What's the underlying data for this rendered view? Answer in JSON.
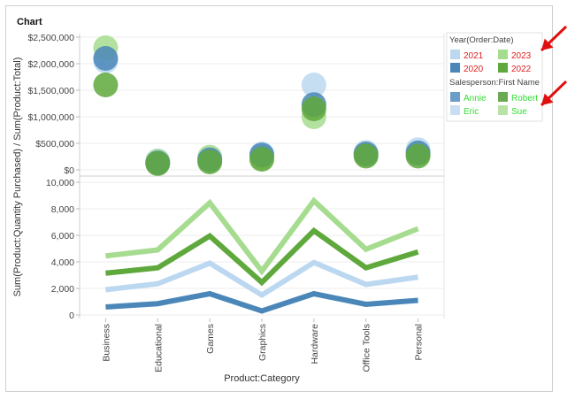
{
  "header": {
    "title": "Chart"
  },
  "chart_data": [
    {
      "type": "scatter",
      "categories": [
        "Business",
        "Educational",
        "Games",
        "Graphics",
        "Hardware",
        "Office Tools",
        "Personal"
      ],
      "ylabel": "Sum(Product:Total)",
      "ylim": [
        0,
        2500000
      ],
      "yticks": [
        "$0",
        "$500,000",
        "$1,000,000",
        "$1,500,000",
        "$2,000,000",
        "$2,500,000"
      ],
      "series": [
        {
          "name": "2021",
          "values": [
            2050000,
            170000,
            180000,
            300000,
            1600000,
            330000,
            380000
          ]
        },
        {
          "name": "2023",
          "values": [
            2300000,
            160000,
            240000,
            230000,
            1000000,
            290000,
            300000
          ]
        },
        {
          "name": "2020",
          "values": [
            2100000,
            130000,
            190000,
            280000,
            1230000,
            300000,
            320000
          ]
        },
        {
          "name": "2022",
          "values": [
            1600000,
            120000,
            150000,
            200000,
            1150000,
            260000,
            260000
          ]
        }
      ]
    },
    {
      "type": "line",
      "categories": [
        "Business",
        "Educational",
        "Games",
        "Graphics",
        "Hardware",
        "Office Tools",
        "Personal"
      ],
      "ylabel": "Sum(Product:Quantity Purchased)",
      "xlabel": "Product:Category",
      "ylim": [
        0,
        10000
      ],
      "yticks": [
        "0",
        "2,000",
        "4,000",
        "6,000",
        "8,000",
        "10,000"
      ],
      "series": [
        {
          "name": "2020",
          "values": [
            600,
            850,
            1600,
            300,
            1600,
            800,
            1100
          ]
        },
        {
          "name": "2021",
          "values": [
            1900,
            2350,
            3900,
            1500,
            3950,
            2300,
            2850
          ]
        },
        {
          "name": "2022",
          "values": [
            3150,
            3550,
            5950,
            2450,
            6350,
            3550,
            4750
          ]
        },
        {
          "name": "2023",
          "values": [
            4450,
            4900,
            8450,
            3300,
            8600,
            4950,
            6500
          ]
        }
      ]
    }
  ],
  "shared_ylabel": "Sum(Product:Quantity Purchased) / Sum(Product:Total)",
  "legend": {
    "year_title": "Year(Order:Date)",
    "years": [
      {
        "label": "2021",
        "color": "#bcd8f0"
      },
      {
        "label": "2023",
        "color": "#a6dc8f"
      },
      {
        "label": "2020",
        "color": "#4a87b8"
      },
      {
        "label": "2022",
        "color": "#5fa83c"
      }
    ],
    "year_text_color": "#e02020",
    "sales_title": "Salesperson:First Name",
    "people": [
      {
        "label": "Annie",
        "color": "#6a9ec9"
      },
      {
        "label": "Robert",
        "color": "#6aaa52"
      },
      {
        "label": "Eric",
        "color": "#c8def2"
      },
      {
        "label": "Sue",
        "color": "#b8e2a6"
      }
    ],
    "people_text_color": "#33dd33"
  },
  "colors": {
    "2020": "#4a87b8",
    "2021": "#bcd8f0",
    "2022": "#5fa83c",
    "2023": "#a6dc8f",
    "arrow": "#e01010"
  }
}
